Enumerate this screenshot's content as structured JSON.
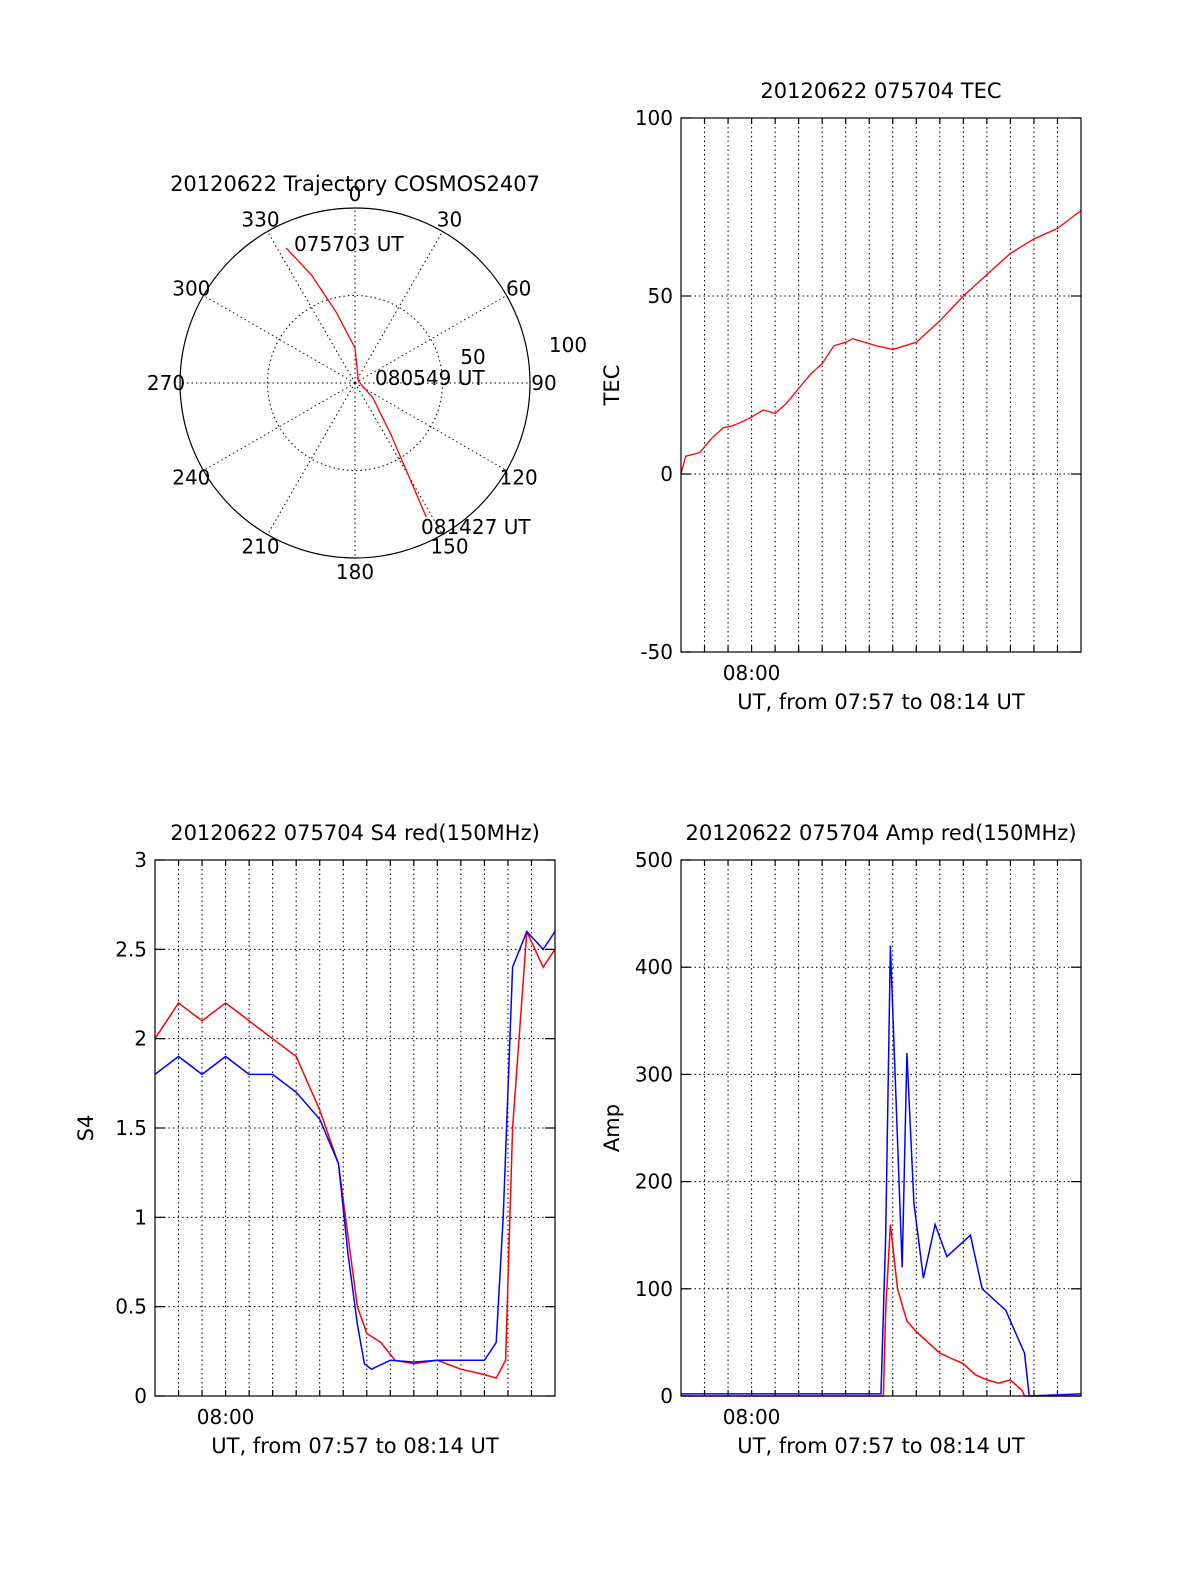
{
  "chart_data": [
    {
      "type": "polar",
      "title": "20120622 Trajectory COSMOS2407",
      "azimuth_labels": [
        "0",
        "30",
        "60",
        "90",
        "120",
        "150",
        "180",
        "210",
        "240",
        "270",
        "300",
        "330"
      ],
      "radial_labels": [
        "50",
        "100"
      ],
      "annotations": {
        "start": "075703 UT",
        "mid": "080549 UT",
        "end": "081427 UT"
      },
      "series": [
        {
          "color": "#ff0000",
          "points": [
            {
              "az": 333,
              "el": 12
            },
            {
              "az": 338,
              "el": 30
            },
            {
              "az": 345,
              "el": 52
            },
            {
              "az": 0,
              "el": 72
            },
            {
              "az": 60,
              "el": 88
            },
            {
              "az": 130,
              "el": 78
            },
            {
              "az": 145,
              "el": 58
            },
            {
              "az": 150,
              "el": 35
            },
            {
              "az": 152,
              "el": 12
            }
          ]
        }
      ]
    },
    {
      "type": "line",
      "title": "20120622 075704 TEC",
      "ylabel": "TEC",
      "xlabel": "UT, from 07:57 to 08:14 UT",
      "xtick_label": "08:00",
      "xlim": [
        0,
        17
      ],
      "ylim": [
        -50,
        100
      ],
      "yticks": [
        "100",
        "50",
        "0",
        "-50"
      ],
      "grid": true,
      "series": [
        {
          "color": "#ff0000",
          "x": [
            0,
            0.2,
            0.8,
            1.3,
            1.8,
            2.2,
            2.7,
            3.0,
            3.5,
            4.0,
            4.5,
            5.0,
            5.5,
            6.0,
            6.5,
            7.0,
            7.3,
            7.8,
            8.3,
            9.0,
            10.0,
            11.0,
            12.0,
            13.0,
            14.0,
            15.0,
            16.0,
            17.0
          ],
          "y": [
            0,
            5,
            6,
            10,
            13,
            13.5,
            15,
            16,
            18,
            17,
            20,
            24,
            28,
            31,
            36,
            37,
            38,
            37,
            36,
            35,
            37,
            43,
            50,
            56,
            62,
            66,
            69,
            74
          ]
        }
      ]
    },
    {
      "type": "line",
      "title": "20120622 075704 S4 red(150MHz)",
      "ylabel": "S4",
      "xlabel": "UT, from 07:57 to 08:14 UT",
      "xtick_label": "08:00",
      "xlim": [
        0,
        17
      ],
      "ylim": [
        0,
        3
      ],
      "yticks": [
        "3",
        "2.5",
        "2",
        "1.5",
        "1",
        "0.5",
        "0"
      ],
      "grid": true,
      "series": [
        {
          "name": "",
          "color": "#ff0000",
          "x": [
            0,
            1,
            2,
            3,
            4,
            5,
            6,
            7,
            7.8,
            8.2,
            8.6,
            9.0,
            9.6,
            10.2,
            11,
            12,
            13,
            14,
            14.5,
            14.9,
            15.2,
            15.8,
            16.5,
            17
          ],
          "y": [
            2.0,
            2.2,
            2.1,
            2.2,
            2.1,
            2.0,
            1.9,
            1.6,
            1.3,
            0.9,
            0.5,
            0.35,
            0.3,
            0.2,
            0.18,
            0.2,
            0.15,
            0.12,
            0.1,
            0.2,
            1.5,
            2.6,
            2.4,
            2.5
          ]
        },
        {
          "name": "",
          "color": "#0000ff",
          "x": [
            0,
            1,
            2,
            3,
            4,
            5,
            6,
            7,
            7.8,
            8.2,
            8.6,
            8.9,
            9.2,
            10,
            11,
            12,
            13,
            14,
            14.5,
            14.8,
            15.2,
            15.8,
            16.5,
            17
          ],
          "y": [
            1.8,
            1.9,
            1.8,
            1.9,
            1.8,
            1.8,
            1.7,
            1.55,
            1.3,
            0.8,
            0.4,
            0.18,
            0.15,
            0.2,
            0.19,
            0.2,
            0.2,
            0.2,
            0.3,
            1.0,
            2.4,
            2.6,
            2.5,
            2.6
          ]
        }
      ]
    },
    {
      "type": "line",
      "title": "20120622 075704 Amp red(150MHz)",
      "ylabel": "Amp",
      "xlabel": "UT, from 07:57 to 08:14 UT",
      "xtick_label": "08:00",
      "xlim": [
        0,
        17
      ],
      "ylim": [
        0,
        500
      ],
      "yticks": [
        "500",
        "400",
        "300",
        "200",
        "100",
        "0"
      ],
      "grid": true,
      "series": [
        {
          "name": "",
          "color": "#ff0000",
          "x": [
            0,
            8.6,
            8.7,
            8.9,
            9.2,
            9.6,
            10.0,
            10.5,
            11.0,
            11.5,
            12.0,
            12.5,
            13.0,
            13.5,
            14.0,
            14.5,
            14.6,
            17
          ],
          "y": [
            0,
            0,
            80,
            160,
            100,
            70,
            60,
            50,
            40,
            35,
            30,
            20,
            15,
            12,
            15,
            5,
            0,
            0
          ]
        },
        {
          "name": "",
          "color": "#0000ff",
          "x": [
            0,
            8.5,
            8.7,
            8.9,
            9.1,
            9.4,
            9.6,
            9.9,
            10.3,
            10.8,
            11.3,
            11.8,
            12.3,
            12.8,
            13.3,
            13.8,
            14.2,
            14.6,
            14.8,
            17
          ],
          "y": [
            2,
            2,
            150,
            420,
            300,
            120,
            320,
            180,
            110,
            160,
            130,
            140,
            150,
            100,
            90,
            80,
            60,
            40,
            0,
            2
          ]
        }
      ]
    }
  ]
}
